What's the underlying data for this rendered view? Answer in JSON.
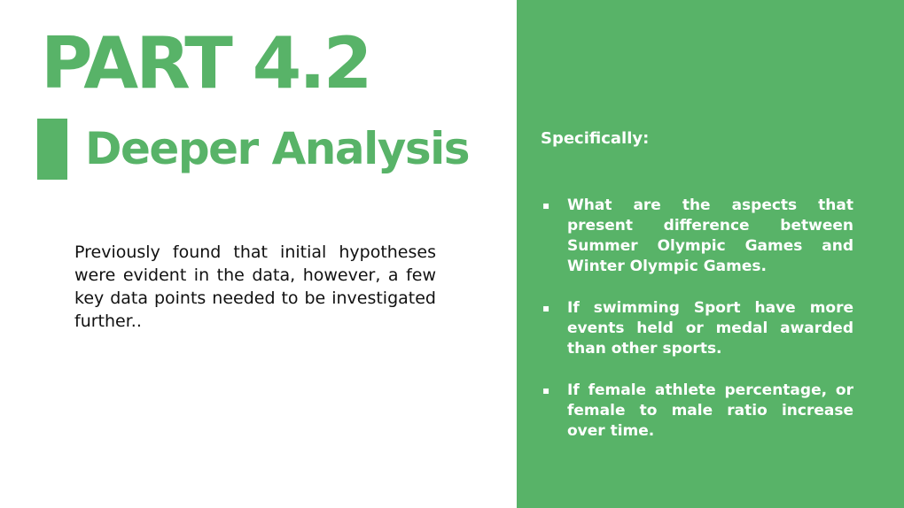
{
  "slide": {
    "title": "PART 4.2",
    "subtitle": "Deeper Analysis",
    "intro": "Previously found that initial hypotheses were evident in the data, however, a few key data points needed to be investigated further.."
  },
  "panel": {
    "heading": "Specifically:",
    "bullet_icon": "square-bullet-icon",
    "bullets": [
      "What are the aspects that present difference between Summer Olympic Games and Winter Olympic Games.",
      "If swimming Sport have more events held or medal awarded than other sports.",
      "If female athlete percentage, or female to male ratio increase over time."
    ]
  },
  "colors": {
    "accent": "#58b368",
    "panel_text": "#ffffff",
    "body_text": "#111111"
  }
}
